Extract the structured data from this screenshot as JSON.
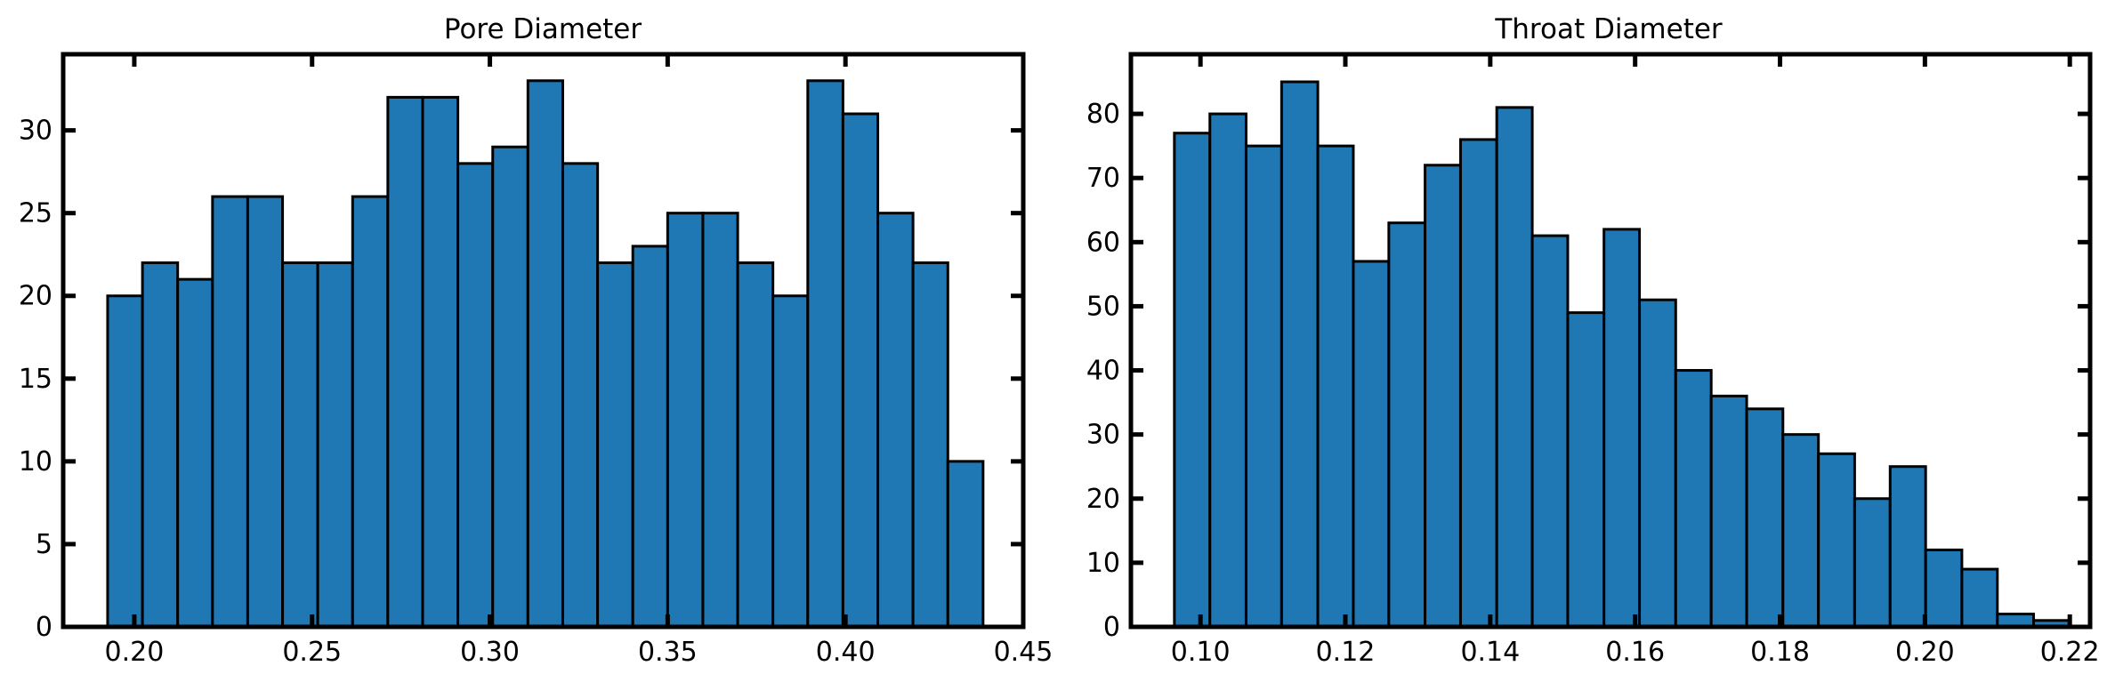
{
  "chart_data": [
    {
      "type": "bar",
      "title": "Pore Diameter",
      "xlabel": "",
      "ylabel": "",
      "xlim": [
        0.18,
        0.45
      ],
      "ylim": [
        0,
        34.6
      ],
      "xticks": [
        0.2,
        0.25,
        0.3,
        0.35,
        0.4,
        0.45
      ],
      "xtick_labels": [
        "0.20",
        "0.25",
        "0.30",
        "0.35",
        "0.40",
        "0.45"
      ],
      "yticks": [
        0,
        5,
        10,
        15,
        20,
        25,
        30
      ],
      "ytick_labels": [
        "0",
        "5",
        "10",
        "15",
        "20",
        "25",
        "30"
      ],
      "bin_edges": [
        0.1925,
        0.2023,
        0.2122,
        0.222,
        0.2319,
        0.2417,
        0.2516,
        0.2614,
        0.2713,
        0.2811,
        0.291,
        0.3008,
        0.3107,
        0.3205,
        0.3303,
        0.3402,
        0.35,
        0.3599,
        0.3697,
        0.3796,
        0.3894,
        0.3993,
        0.4091,
        0.419,
        0.4288,
        0.4387
      ],
      "values": [
        20,
        22,
        21,
        26,
        26,
        22,
        22,
        26,
        32,
        32,
        28,
        29,
        33,
        28,
        22,
        23,
        25,
        25,
        22,
        20,
        33,
        31,
        25,
        22,
        10
      ],
      "grid": false
    },
    {
      "type": "bar",
      "title": "Throat Diameter",
      "xlabel": "",
      "ylabel": "",
      "xlim": [
        0.0904,
        0.2228
      ],
      "ylim": [
        0,
        89.3
      ],
      "xticks": [
        0.1,
        0.12,
        0.14,
        0.16,
        0.18,
        0.2,
        0.22
      ],
      "xtick_labels": [
        "0.10",
        "0.12",
        "0.14",
        "0.16",
        "0.18",
        "0.20",
        "0.22"
      ],
      "yticks": [
        0,
        10,
        20,
        30,
        40,
        50,
        60,
        70,
        80
      ],
      "ytick_labels": [
        "0",
        "10",
        "20",
        "30",
        "40",
        "50",
        "60",
        "70",
        "80"
      ],
      "bin_edges": [
        0.0964,
        0.1013,
        0.1063,
        0.1112,
        0.1162,
        0.1211,
        0.126,
        0.131,
        0.1359,
        0.1409,
        0.1458,
        0.1507,
        0.1557,
        0.1606,
        0.1656,
        0.1705,
        0.1754,
        0.1804,
        0.1853,
        0.1903,
        0.1952,
        0.2001,
        0.2051,
        0.21,
        0.215,
        0.2199
      ],
      "values": [
        77,
        80,
        75,
        85,
        75,
        57,
        63,
        72,
        76,
        81,
        61,
        49,
        62,
        51,
        40,
        36,
        34,
        30,
        27,
        20,
        25,
        12,
        9,
        2,
        1
      ],
      "grid": false
    }
  ]
}
